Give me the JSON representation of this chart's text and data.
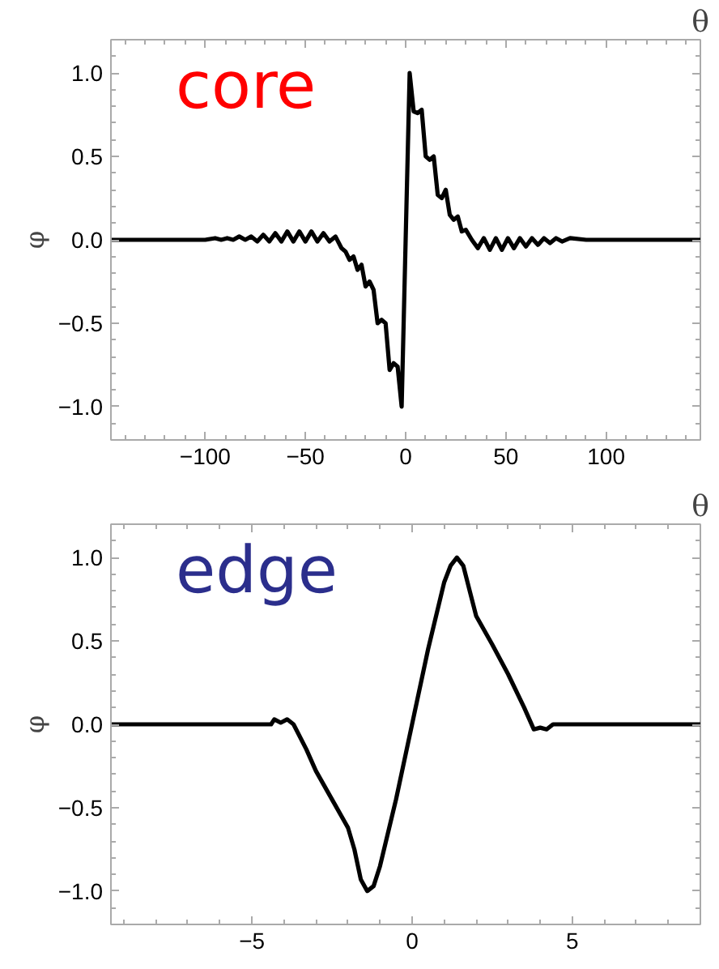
{
  "chart_data": [
    {
      "type": "line",
      "xlabel": "θ",
      "ylabel": "φ",
      "annotations": [
        "core"
      ],
      "xlim": [
        -147,
        147
      ],
      "ylim": [
        -1.2,
        1.2
      ],
      "xticks": [
        -100,
        -50,
        0,
        50,
        100
      ],
      "yticks": [
        {
          "value": -1.0,
          "label": "−1.0"
        },
        {
          "value": -0.5,
          "label": "−0.5"
        },
        {
          "value": 0.0,
          "label": "0.0"
        },
        {
          "value": 0.5,
          "label": "0.5"
        },
        {
          "value": 1.0,
          "label": "1.0"
        }
      ],
      "grid": false,
      "marker": "none",
      "line_style": "solid",
      "series": [
        {
          "color": "#000000",
          "x": [
            -147,
            -100,
            -95,
            -92,
            -89,
            -86,
            -83,
            -80,
            -77,
            -74,
            -71,
            -68,
            -65,
            -62,
            -59,
            -56,
            -53,
            -50,
            -47,
            -44,
            -41,
            -38,
            -35,
            -32,
            -30,
            -28,
            -26,
            -24,
            -22,
            -20,
            -18,
            -16,
            -14,
            -12,
            -10,
            -8,
            -6,
            -4,
            -2,
            0,
            2,
            4,
            6,
            8,
            10,
            12,
            14,
            16,
            18,
            20,
            22,
            24,
            26,
            28,
            30,
            33,
            36,
            39,
            42,
            45,
            48,
            51,
            54,
            57,
            60,
            63,
            66,
            69,
            72,
            75,
            78,
            82,
            90,
            100,
            147
          ],
          "values": [
            0,
            0,
            0.01,
            0,
            0.01,
            0,
            0.02,
            0,
            0.02,
            -0.01,
            0.03,
            -0.01,
            0.04,
            -0.01,
            0.05,
            -0.01,
            0.05,
            -0.01,
            0.05,
            -0.01,
            0.04,
            -0.01,
            0.02,
            -0.05,
            -0.07,
            -0.12,
            -0.1,
            -0.18,
            -0.15,
            -0.28,
            -0.25,
            -0.3,
            -0.5,
            -0.48,
            -0.5,
            -0.78,
            -0.74,
            -0.76,
            -1.0,
            0.0,
            1.0,
            0.77,
            0.76,
            0.78,
            0.5,
            0.48,
            0.5,
            0.27,
            0.25,
            0.3,
            0.15,
            0.12,
            0.14,
            0.05,
            0.06,
            0.0,
            -0.05,
            0.01,
            -0.06,
            0.01,
            -0.06,
            0.01,
            -0.05,
            0.01,
            -0.04,
            0.01,
            -0.03,
            0.01,
            -0.02,
            0.01,
            -0.01,
            0.01,
            0,
            0,
            0
          ]
        }
      ]
    },
    {
      "type": "line",
      "xlabel": "θ",
      "ylabel": "φ",
      "annotations": [
        "edge"
      ],
      "xlim": [
        -9.4,
        9.0
      ],
      "ylim": [
        -1.2,
        1.2
      ],
      "xticks": [
        -5,
        0,
        5
      ],
      "yticks": [
        {
          "value": -1.0,
          "label": "−1.0"
        },
        {
          "value": -0.5,
          "label": "−0.5"
        },
        {
          "value": 0.0,
          "label": "0.0"
        },
        {
          "value": 0.5,
          "label": "0.5"
        },
        {
          "value": 1.0,
          "label": "1.0"
        }
      ],
      "grid": false,
      "marker": "none",
      "line_style": "solid",
      "series": [
        {
          "color": "#000000",
          "x": [
            -9.4,
            -8.5,
            -4.4,
            -4.3,
            -4.1,
            -3.9,
            -3.7,
            -3.3,
            -3.0,
            -2.5,
            -2.0,
            -1.8,
            -1.6,
            -1.4,
            -1.2,
            -1.0,
            -0.5,
            0.0,
            0.5,
            1.0,
            1.2,
            1.4,
            1.6,
            1.8,
            2.0,
            2.5,
            3.0,
            3.5,
            3.8,
            4.0,
            4.2,
            4.4,
            4.6,
            9.0
          ],
          "values": [
            0,
            0,
            0,
            0.03,
            0.01,
            0.03,
            0.0,
            -0.15,
            -0.28,
            -0.45,
            -0.62,
            -0.75,
            -0.93,
            -1.0,
            -0.97,
            -0.85,
            -0.45,
            0.0,
            0.45,
            0.85,
            0.95,
            1.0,
            0.95,
            0.8,
            0.65,
            0.48,
            0.3,
            0.1,
            -0.03,
            -0.02,
            -0.03,
            0.0,
            0,
            0
          ]
        }
      ]
    }
  ]
}
